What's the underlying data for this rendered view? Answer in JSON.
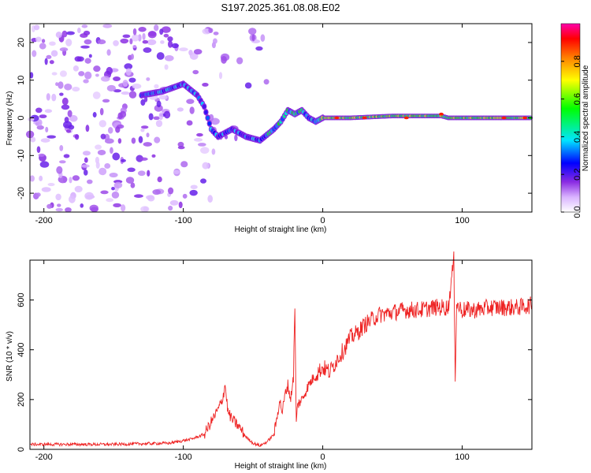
{
  "title": "S197.2025.361.08.08.E02",
  "chart_data": [
    {
      "type": "heatmap",
      "xlabel": "Height of straight line (km)",
      "ylabel": "Frequency (Hz)",
      "xlim": [
        -210,
        150
      ],
      "ylim": [
        -25,
        25
      ],
      "xticks": [
        -200,
        -100,
        0,
        100
      ],
      "yticks": [
        20,
        10,
        0,
        -10,
        -20
      ],
      "colorbar": {
        "label": "Normalized spectral amplitude",
        "range": [
          0,
          1
        ],
        "ticks": [
          0.0,
          0.2,
          0.4,
          0.6,
          0.8
        ]
      },
      "ridge": {
        "description_points": [
          {
            "x": -130,
            "y": 6
          },
          {
            "x": -115,
            "y": 7
          },
          {
            "x": -100,
            "y": 9
          },
          {
            "x": -90,
            "y": 6
          },
          {
            "x": -85,
            "y": 3
          },
          {
            "x": -80,
            "y": -3
          },
          {
            "x": -75,
            "y": -5
          },
          {
            "x": -65,
            "y": -3
          },
          {
            "x": -55,
            "y": -5
          },
          {
            "x": -45,
            "y": -6
          },
          {
            "x": -35,
            "y": -3
          },
          {
            "x": -30,
            "y": -1
          },
          {
            "x": -25,
            "y": 2
          },
          {
            "x": -20,
            "y": 1
          },
          {
            "x": -15,
            "y": 2
          },
          {
            "x": -10,
            "y": 0
          },
          {
            "x": -5,
            "y": -1
          },
          {
            "x": 0,
            "y": 0
          },
          {
            "x": 20,
            "y": 0
          },
          {
            "x": 50,
            "y": 0.5
          },
          {
            "x": 85,
            "y": 0.5
          },
          {
            "x": 90,
            "y": 0
          },
          {
            "x": 150,
            "y": 0
          }
        ]
      }
    },
    {
      "type": "line",
      "xlabel": "Height of straight line (km)",
      "ylabel": "SNR (10 * v/v)",
      "xlim": [
        -210,
        150
      ],
      "ylim": [
        0,
        760
      ],
      "xticks": [
        -200,
        -100,
        0,
        100
      ],
      "yticks": [
        0,
        200,
        400,
        600
      ],
      "series": [
        {
          "name": "SNR",
          "color": "#ee2222",
          "x": [
            -210,
            -150,
            -110,
            -95,
            -85,
            -80,
            -75,
            -72,
            -70,
            -68,
            -65,
            -60,
            -55,
            -50,
            -45,
            -40,
            -35,
            -33,
            -31,
            -29,
            -27,
            -25,
            -23,
            -21,
            -20,
            -19,
            -18,
            -15,
            -10,
            -5,
            0,
            5,
            10,
            15,
            20,
            25,
            30,
            40,
            50,
            60,
            70,
            80,
            90,
            94,
            95,
            96,
            100,
            110,
            120,
            130,
            140,
            150
          ],
          "y": [
            20,
            20,
            25,
            40,
            60,
            110,
            160,
            200,
            260,
            150,
            120,
            90,
            50,
            25,
            15,
            30,
            60,
            120,
            200,
            150,
            220,
            260,
            200,
            300,
            560,
            100,
            180,
            200,
            260,
            300,
            330,
            310,
            360,
            400,
            450,
            470,
            500,
            540,
            550,
            560,
            560,
            570,
            570,
            760,
            300,
            580,
            560,
            560,
            570,
            570,
            570,
            580
          ]
        }
      ]
    }
  ]
}
